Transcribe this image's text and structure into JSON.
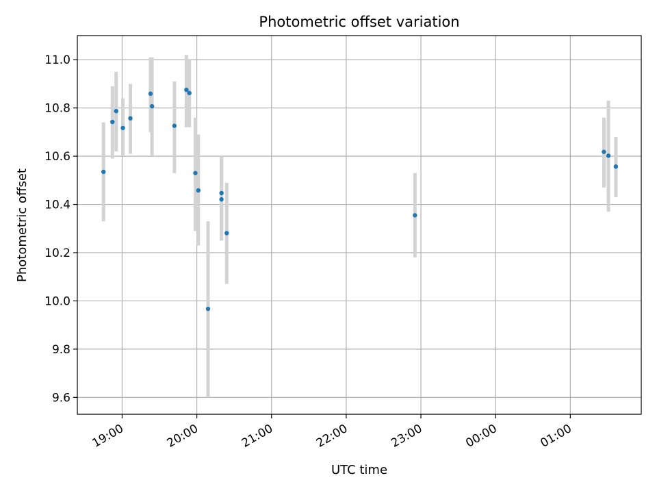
{
  "chart_data": {
    "type": "scatter",
    "title": "Photometric offset variation",
    "xlabel": "UTC time",
    "ylabel": "Photometric offset",
    "x_unit": "UTC hour (hours after 18:00 of the first day)",
    "xlim": [
      18.4,
      25.95
    ],
    "ylim": [
      9.53,
      11.1
    ],
    "grid": true,
    "x_ticks": [
      {
        "value": 19,
        "label": "19:00"
      },
      {
        "value": 20,
        "label": "20:00"
      },
      {
        "value": 21,
        "label": "21:00"
      },
      {
        "value": 22,
        "label": "22:00"
      },
      {
        "value": 23,
        "label": "23:00"
      },
      {
        "value": 24,
        "label": "00:00"
      },
      {
        "value": 25,
        "label": "01:00"
      }
    ],
    "y_ticks": [
      {
        "value": 9.6,
        "label": "9.6"
      },
      {
        "value": 9.8,
        "label": "9.8"
      },
      {
        "value": 10.0,
        "label": "10.0"
      },
      {
        "value": 10.2,
        "label": "10.2"
      },
      {
        "value": 10.4,
        "label": "10.4"
      },
      {
        "value": 10.6,
        "label": "10.6"
      },
      {
        "value": 10.8,
        "label": "10.8"
      },
      {
        "value": 11.0,
        "label": "11.0"
      }
    ],
    "colors": {
      "point": "#1f77b4",
      "errorbar": "#d3d3d3",
      "grid": "#b0b0b0"
    },
    "points": [
      {
        "t": 18.75,
        "y": 10.535,
        "lo": 10.33,
        "hi": 10.74
      },
      {
        "t": 18.87,
        "y": 10.742,
        "lo": 10.59,
        "hi": 10.89
      },
      {
        "t": 18.92,
        "y": 10.787,
        "lo": 10.62,
        "hi": 10.95
      },
      {
        "t": 19.01,
        "y": 10.717,
        "lo": 10.6,
        "hi": 10.84
      },
      {
        "t": 19.11,
        "y": 10.757,
        "lo": 10.61,
        "hi": 10.9
      },
      {
        "t": 19.38,
        "y": 10.859,
        "lo": 10.7,
        "hi": 11.01
      },
      {
        "t": 19.4,
        "y": 10.807,
        "lo": 10.6,
        "hi": 11.01
      },
      {
        "t": 19.7,
        "y": 10.726,
        "lo": 10.53,
        "hi": 10.91
      },
      {
        "t": 19.86,
        "y": 10.875,
        "lo": 10.72,
        "hi": 11.02
      },
      {
        "t": 19.9,
        "y": 10.862,
        "lo": 10.72,
        "hi": 11.0
      },
      {
        "t": 19.98,
        "y": 10.53,
        "lo": 10.29,
        "hi": 10.76
      },
      {
        "t": 20.02,
        "y": 10.458,
        "lo": 10.23,
        "hi": 10.69
      },
      {
        "t": 20.15,
        "y": 9.967,
        "lo": 9.6,
        "hi": 10.33
      },
      {
        "t": 20.33,
        "y": 10.447,
        "lo": 10.29,
        "hi": 10.6
      },
      {
        "t": 20.33,
        "y": 10.421,
        "lo": 10.25,
        "hi": 10.59
      },
      {
        "t": 20.4,
        "y": 10.281,
        "lo": 10.07,
        "hi": 10.49
      },
      {
        "t": 22.92,
        "y": 10.355,
        "lo": 10.18,
        "hi": 10.53
      },
      {
        "t": 25.45,
        "y": 10.618,
        "lo": 10.47,
        "hi": 10.76
      },
      {
        "t": 25.51,
        "y": 10.602,
        "lo": 10.37,
        "hi": 10.83
      },
      {
        "t": 25.61,
        "y": 10.557,
        "lo": 10.43,
        "hi": 10.68
      }
    ]
  }
}
